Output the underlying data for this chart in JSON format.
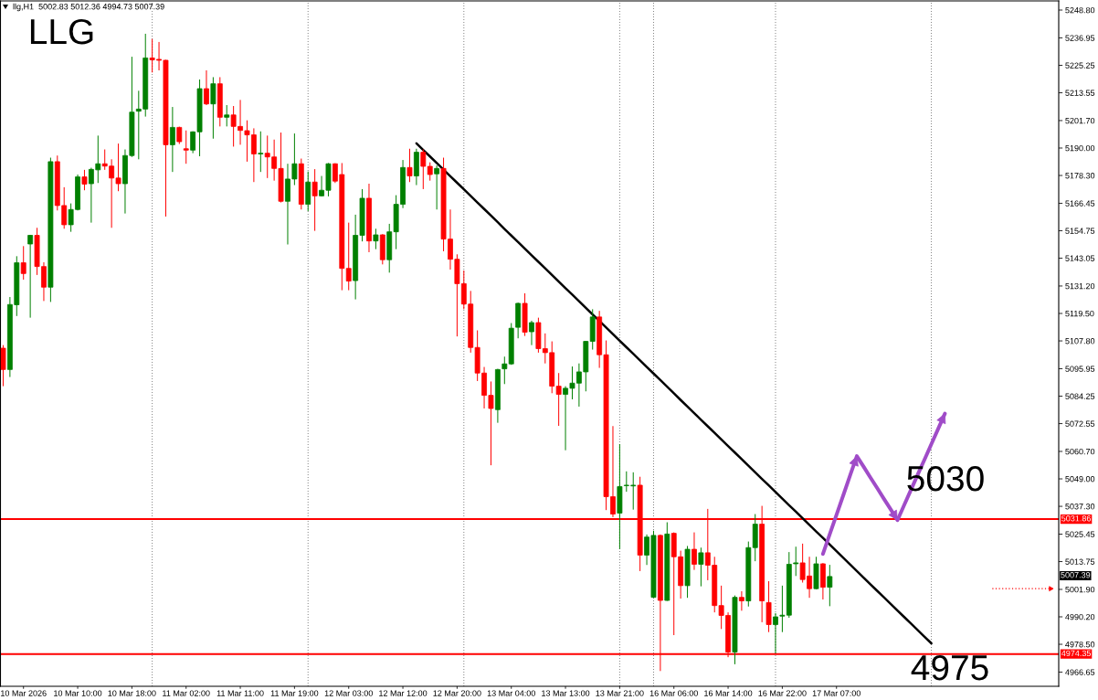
{
  "chart_data": {
    "type": "candlestick",
    "title": "LLG",
    "subtitle": "llg,H1  5002.83 5012.36 4994.73 5007.39",
    "categories": [
      null,
      null,
      null,
      "10 Mar 2026",
      null,
      null,
      null,
      null,
      null,
      null,
      null,
      "10 Mar 10:00",
      null,
      null,
      null,
      null,
      null,
      null,
      null,
      "10 Mar 18:00",
      null,
      null,
      null,
      null,
      null,
      null,
      null,
      "11 Mar 02:00",
      null,
      null,
      null,
      null,
      null,
      null,
      null,
      "11 Mar 11:00",
      null,
      null,
      null,
      null,
      null,
      null,
      null,
      "11 Mar 19:00",
      null,
      null,
      null,
      null,
      null,
      null,
      null,
      "12 Mar 03:00",
      null,
      null,
      null,
      null,
      null,
      null,
      null,
      "12 Mar 12:00",
      null,
      null,
      null,
      null,
      null,
      null,
      null,
      "12 Mar 20:00",
      null,
      null,
      null,
      null,
      null,
      null,
      null,
      "13 Mar 04:00",
      null,
      null,
      null,
      null,
      null,
      null,
      null,
      "13 Mar 13:00",
      null,
      null,
      null,
      null,
      null,
      null,
      null,
      "13 Mar 21:00",
      null,
      null,
      null,
      null,
      null,
      null,
      null,
      "16 Mar 06:00",
      null,
      null,
      null,
      null,
      null,
      null,
      null,
      "16 Mar 14:00",
      null,
      null,
      null,
      null,
      null,
      null,
      null,
      "16 Mar 22:00",
      null,
      null,
      null,
      null,
      null,
      null,
      null,
      "17 Mar 07:00",
      null,
      null,
      null,
      null,
      null,
      null,
      null,
      null,
      null,
      null,
      null,
      null,
      null,
      null,
      null,
      null,
      null,
      null,
      null,
      null,
      null,
      null,
      null,
      null,
      null,
      null,
      null,
      null,
      null,
      null,
      null,
      null
    ],
    "ohlc": [
      [
        5104.7,
        5106.0,
        5088.5,
        5095.6
      ],
      [
        5095.6,
        5126.5,
        5092.4,
        5123.3
      ],
      [
        5123.2,
        5143.9,
        5118.4,
        5141.1
      ],
      [
        5141.1,
        5148.2,
        5133.9,
        5136.5
      ],
      [
        5149.1,
        5153.0,
        5117.7,
        5152.8
      ],
      [
        5152.8,
        5156.0,
        5135.9,
        5139.5
      ],
      [
        5139.5,
        5141.3,
        5124.8,
        5130.7
      ],
      [
        5130.7,
        5185.9,
        5124.4,
        5184.2
      ],
      [
        5184.2,
        5186.8,
        5163.4,
        5165.5
      ],
      [
        5165.5,
        5173.3,
        5155.6,
        5157.3
      ],
      [
        5157.3,
        5166.4,
        5154.3,
        5163.8
      ],
      [
        5163.8,
        5178.7,
        5163.4,
        5177.7
      ],
      [
        5177.7,
        5180.7,
        5172.0,
        5174.6
      ],
      [
        5174.8,
        5181.6,
        5158.2,
        5180.9
      ],
      [
        5180.7,
        5195.3,
        5175.1,
        5183.3
      ],
      [
        5183.3,
        5189.4,
        5180.7,
        5182.3
      ],
      [
        5182.3,
        5185.2,
        5156.0,
        5177.2
      ],
      [
        5177.2,
        5191.9,
        5171.6,
        5174.8
      ],
      [
        5174.8,
        5189.4,
        5162.1,
        5186.8
      ],
      [
        5186.8,
        5228.9,
        5186.2,
        5205.3
      ],
      [
        5205.7,
        5214.4,
        5185.2,
        5206.6
      ],
      [
        5206.6,
        5238.7,
        5203.4,
        5228.4
      ],
      [
        5228.4,
        5236.5,
        5222.2,
        5227.6
      ],
      [
        5227.8,
        5235.2,
        5223.1,
        5227.4
      ],
      [
        5227.4,
        5227.6,
        5160.8,
        5191.4
      ],
      [
        5191.4,
        5207.5,
        5179.8,
        5198.8
      ],
      [
        5198.8,
        5199.1,
        5191.7,
        5192.7
      ],
      [
        5189.7,
        5197.5,
        5183.3,
        5189.1
      ],
      [
        5189.1,
        5197.1,
        5187.8,
        5196.9
      ],
      [
        5196.9,
        5219.2,
        5186.5,
        5215.3
      ],
      [
        5215.3,
        5223.1,
        5208.3,
        5208.8
      ],
      [
        5208.8,
        5220.2,
        5194.0,
        5217.4
      ],
      [
        5217.4,
        5220.2,
        5199.2,
        5203.1
      ],
      [
        5203.1,
        5208.3,
        5199.2,
        5204.1
      ],
      [
        5204.1,
        5207.9,
        5190.6,
        5199.2
      ],
      [
        5199.2,
        5210.5,
        5191.4,
        5197.5
      ],
      [
        5197.4,
        5201.8,
        5184.2,
        5195.6
      ],
      [
        5195.6,
        5198.4,
        5175.5,
        5187.5
      ],
      [
        5187.5,
        5197.1,
        5179.8,
        5187.8
      ],
      [
        5187.8,
        5195.3,
        5177.2,
        5186.2
      ],
      [
        5186.2,
        5193.6,
        5176.1,
        5181.3
      ],
      [
        5181.3,
        5196.6,
        5166.8,
        5167.3
      ],
      [
        5167.3,
        5183.3,
        5148.9,
        5176.8
      ],
      [
        5176.8,
        5196.2,
        5174.2,
        5183.3
      ],
      [
        5183.3,
        5185.5,
        5163.8,
        5166.0
      ],
      [
        5166.0,
        5180.0,
        5163.1,
        5175.5
      ],
      [
        5175.5,
        5181.0,
        5154.7,
        5169.6
      ],
      [
        5169.6,
        5178.1,
        5169.4,
        5172.0
      ],
      [
        5172.0,
        5183.6,
        5169.4,
        5183.3
      ],
      [
        5183.3,
        5183.5,
        5175.1,
        5175.9
      ],
      [
        5178.7,
        5183.6,
        5129.4,
        5138.7
      ],
      [
        5138.7,
        5158.2,
        5129.4,
        5133.3
      ],
      [
        5133.5,
        5161.6,
        5125.5,
        5152.8
      ],
      [
        5152.8,
        5172.5,
        5150.2,
        5168.6
      ],
      [
        5168.6,
        5174.8,
        5145.6,
        5150.4
      ],
      [
        5150.4,
        5155.6,
        5146.9,
        5153.0
      ],
      [
        5153.0,
        5153.3,
        5140.4,
        5142.4
      ],
      [
        5142.4,
        5157.7,
        5136.9,
        5154.3
      ],
      [
        5154.3,
        5169.9,
        5146.9,
        5166.0
      ],
      [
        5166.0,
        5184.9,
        5164.4,
        5181.7
      ],
      [
        5181.7,
        5189.7,
        5175.5,
        5178.1
      ],
      [
        5178.1,
        5189.7,
        5174.2,
        5188.2
      ],
      [
        5188.2,
        5189.4,
        5172.5,
        5182.2
      ],
      [
        5182.2,
        5183.9,
        5176.1,
        5178.7
      ],
      [
        5179.0,
        5182.6,
        5163.8,
        5181.3
      ],
      [
        5181.3,
        5185.9,
        5146.0,
        5151.2
      ],
      [
        5151.2,
        5163.8,
        5138.2,
        5142.6
      ],
      [
        5142.6,
        5144.7,
        5109.7,
        5132.2
      ],
      [
        5132.2,
        5137.8,
        5121.3,
        5123.5
      ],
      [
        5123.5,
        5129.1,
        5102.8,
        5105.0
      ],
      [
        5105.0,
        5112.3,
        5090.7,
        5094.1
      ],
      [
        5094.1,
        5096.7,
        5079.0,
        5084.6
      ],
      [
        5084.6,
        5090.5,
        5054.8,
        5079.0
      ],
      [
        5078.5,
        5095.9,
        5072.9,
        5095.6
      ],
      [
        5095.9,
        5101.1,
        5089.4,
        5098.0
      ],
      [
        5098.0,
        5115.4,
        5097.6,
        5113.2
      ],
      [
        5113.6,
        5124.1,
        5108.9,
        5123.8
      ],
      [
        5123.8,
        5128.1,
        5109.9,
        5111.5
      ],
      [
        5111.7,
        5116.4,
        5106.0,
        5115.6
      ],
      [
        5115.6,
        5117.7,
        5102.8,
        5104.5
      ],
      [
        5104.5,
        5111.0,
        5098.2,
        5102.8
      ],
      [
        5102.8,
        5107.6,
        5085.5,
        5088.5
      ],
      [
        5088.5,
        5094.1,
        5071.6,
        5085.0
      ],
      [
        5085.0,
        5088.5,
        5061.2,
        5087.6
      ],
      [
        5087.6,
        5096.9,
        5082.9,
        5089.8
      ],
      [
        5089.8,
        5098.2,
        5079.8,
        5094.6
      ],
      [
        5094.6,
        5107.8,
        5086.3,
        5107.6
      ],
      [
        5107.6,
        5121.3,
        5104.1,
        5118.0
      ],
      [
        5118.0,
        5120.6,
        5096.3,
        5101.9
      ],
      [
        5101.9,
        5108.0,
        5035.7,
        5041.4
      ],
      [
        5041.4,
        5071.5,
        5032.7,
        5034.0
      ],
      [
        5034.4,
        5063.8,
        5019.1,
        5045.7
      ],
      [
        5046.1,
        5052.2,
        5043.5,
        5046.3
      ],
      [
        5046.0,
        5051.8,
        5035.9,
        5046.3
      ],
      [
        5046.3,
        5049.9,
        5009.7,
        5016.5
      ],
      [
        5016.5,
        5025.3,
        5012.3,
        5024.2
      ],
      [
        4998.5,
        5026.9,
        4998.3,
        5024.9
      ],
      [
        5024.9,
        5025.3,
        4967.1,
        4997.2
      ],
      [
        4997.2,
        5030.5,
        4997.0,
        5025.5
      ],
      [
        5025.8,
        5026.2,
        4982.4,
        5015.8
      ],
      [
        5015.8,
        5018.4,
        4998.0,
        5003.5
      ],
      [
        5003.5,
        5020.4,
        4998.3,
        5019.0
      ],
      [
        5019.0,
        5026.2,
        5010.2,
        5012.6
      ],
      [
        5012.6,
        5019.7,
        5003.2,
        5017.5
      ],
      [
        5017.5,
        5036.2,
        5005.8,
        5012.2
      ],
      [
        5012.2,
        5015.8,
        4992.1,
        4995.0
      ],
      [
        4995.0,
        5003.5,
        4985.0,
        4990.8
      ],
      [
        4990.8,
        4992.1,
        4973.0,
        4975.2
      ],
      [
        4975.2,
        4999.3,
        4970.0,
        4998.5
      ],
      [
        4998.5,
        5001.1,
        4992.8,
        4997.0
      ],
      [
        4997.0,
        5022.3,
        4994.6,
        5019.7
      ],
      [
        5019.7,
        5034.0,
        5013.9,
        5029.7
      ],
      [
        5029.7,
        5037.5,
        4987.9,
        4997.0
      ],
      [
        4996.3,
        5005.4,
        4983.7,
        4986.9
      ],
      [
        4986.9,
        4991.8,
        4974.7,
        4990.2
      ],
      [
        4990.5,
        5003.5,
        4983.7,
        4990.9
      ],
      [
        4990.9,
        5017.8,
        4989.8,
        5012.6
      ],
      [
        5012.8,
        5020.1,
        5007.6,
        5013.2
      ],
      [
        5013.2,
        5021.4,
        5004.8,
        5006.1
      ],
      [
        5007.6,
        5015.8,
        4998.3,
        5002.2
      ],
      [
        5002.2,
        5015.8,
        5001.9,
        5012.8
      ],
      [
        5012.8,
        5013.1,
        4997.6,
        5002.8
      ],
      [
        5002.83,
        5012.36,
        4994.73,
        5007.39
      ],
      null,
      null,
      null,
      null,
      null,
      null,
      null,
      null,
      null,
      null,
      null,
      null,
      null,
      null,
      null,
      null,
      null,
      null,
      null,
      null,
      null,
      null,
      null,
      null,
      null,
      null,
      null,
      null,
      null,
      null,
      null,
      null,
      null
    ],
    "colors": [
      "#ff0000",
      "#008000",
      "#008000",
      "#ff0000",
      "#008000",
      "#ff0000",
      "#ff0000",
      "#008000",
      "#ff0000",
      "#ff0000",
      "#008000",
      "#008000",
      "#ff0000",
      "#008000",
      "#008000",
      "#ff0000",
      "#ff0000",
      "#ff0000",
      "#008000",
      "#008000",
      "#008000",
      "#008000",
      "#ff0000",
      "#ff0000",
      "#ff0000",
      "#008000",
      "#ff0000",
      "#ff0000",
      "#008000",
      "#008000",
      "#ff0000",
      "#008000",
      "#ff0000",
      "#008000",
      "#ff0000",
      "#ff0000",
      "#ff0000",
      "#ff0000",
      "#008000",
      "#ff0000",
      "#ff0000",
      "#ff0000",
      "#008000",
      "#008000",
      "#ff0000",
      "#008000",
      "#ff0000",
      "#008000",
      "#008000",
      "#ff0000",
      "#ff0000",
      "#ff0000",
      "#008000",
      "#008000",
      "#ff0000",
      "#008000",
      "#ff0000",
      "#008000",
      "#008000",
      "#008000",
      "#ff0000",
      "#008000",
      "#ff0000",
      "#ff0000",
      "#008000",
      "#ff0000",
      "#ff0000",
      "#ff0000",
      "#ff0000",
      "#ff0000",
      "#ff0000",
      "#ff0000",
      "#ff0000",
      "#008000",
      "#008000",
      "#008000",
      "#008000",
      "#ff0000",
      "#008000",
      "#ff0000",
      "#ff0000",
      "#ff0000",
      "#ff0000",
      "#008000",
      "#008000",
      "#008000",
      "#008000",
      "#008000",
      "#ff0000",
      "#ff0000",
      "#ff0000",
      "#008000",
      "#008000",
      "#008000",
      "#ff0000",
      "#008000",
      "#008000",
      "#ff0000",
      "#008000",
      "#ff0000",
      "#ff0000",
      "#008000",
      "#ff0000",
      "#008000",
      "#ff0000",
      "#ff0000",
      "#ff0000",
      "#ff0000",
      "#008000",
      "#ff0000",
      "#008000",
      "#008000",
      "#ff0000",
      "#ff0000",
      "#008000",
      "#008000",
      "#008000",
      "#008000",
      "#ff0000",
      "#ff0000",
      "#008000",
      "#ff0000",
      "#008000",
      null,
      null,
      null,
      null,
      null,
      null,
      null,
      null,
      null,
      null,
      null,
      null,
      null,
      null,
      null,
      null,
      null,
      null,
      null,
      null,
      null,
      null,
      null,
      null,
      null,
      null,
      null,
      null,
      null,
      null,
      null,
      null,
      null
    ],
    "ylim": [
      4960.6,
      5252.7
    ],
    "yticks": [
      {
        "value": 5248.8,
        "label": "5248.80"
      },
      5236.95,
      5225.25,
      5213.55,
      {
        "value": 5201.7,
        "label": "5201.70"
      },
      {
        "value": 5190,
        "label": "5190.00"
      },
      {
        "value": 5178.3,
        "label": "5178.30"
      },
      5166.45,
      5154.75,
      5143.05,
      {
        "value": 5131.2,
        "label": "5131.20"
      },
      {
        "value": 5119.5,
        "label": "5119.50"
      },
      {
        "value": 5107.8,
        "label": "5107.80"
      },
      5095.95,
      5084.25,
      5072.55,
      {
        "value": 5060.7,
        "label": "5060.70"
      },
      {
        "value": 5049,
        "label": "5049.00"
      },
      {
        "value": 5037.3,
        "label": "5037.30"
      },
      5025.45,
      5013.75,
      {
        "value": 5001.9,
        "label": "5001.90"
      },
      {
        "value": 4990.2,
        "label": "4990.20"
      },
      {
        "value": 4978.5,
        "label": "4978.50"
      },
      4966.65
    ],
    "series": [
      {
        "type": "line",
        "color": "#000000",
        "values": [
          null,
          null,
          null,
          null,
          null,
          null,
          null,
          null,
          null,
          null,
          null,
          null,
          null,
          null,
          null,
          null,
          null,
          null,
          null,
          null,
          null,
          null,
          null,
          null,
          null,
          null,
          null,
          null,
          null,
          null,
          null,
          null,
          null,
          null,
          null,
          null,
          null,
          null,
          null,
          null,
          null,
          null,
          null,
          null,
          null,
          null,
          null,
          null,
          null,
          null,
          null,
          null,
          null,
          null,
          null,
          null,
          null,
          null,
          null,
          null,
          null,
          5192.0,
          5189.2,
          5186.4,
          5183.6,
          5180.8,
          5178.0,
          5175.2,
          5172.4,
          5169.6,
          5166.8,
          5164.0,
          5161.2,
          5158.4,
          5155.5,
          5152.7,
          5149.9,
          5147.1,
          5144.3,
          5141.5,
          5138.7,
          5135.9,
          5133.1,
          5130.3,
          5127.5,
          5124.7,
          5121.9,
          5119.1,
          5116.3,
          5113.5,
          5110.7,
          5107.9,
          5105.1,
          5102.3,
          5099.5,
          5096.7,
          5093.9,
          5091.1,
          5088.3,
          5085.5,
          5082.6,
          5079.8,
          5077.0,
          5074.2,
          5071.4,
          5068.6,
          5065.8,
          5063.0,
          5060.2,
          5057.4,
          5054.6,
          5051.8,
          5049.0,
          5046.2,
          5043.4,
          5040.6,
          5037.8,
          5035.0,
          5032.2,
          5029.4,
          5026.6,
          5023.8,
          5021.0,
          5018.2,
          5015.4,
          5012.5,
          5009.7,
          5006.9,
          5004.1,
          5001.3,
          4998.5,
          4995.7,
          4992.9,
          4990.1,
          4987.3,
          4984.5,
          4981.7,
          4978.9,
          null,
          null,
          null,
          null,
          null,
          null,
          null,
          null,
          null,
          null,
          null,
          null,
          null,
          null,
          null,
          null,
          null,
          null
        ]
      },
      {
        "type": "line",
        "color": "#a04cc8",
        "values": [
          null,
          null,
          null,
          null,
          null,
          null,
          null,
          null,
          null,
          null,
          null,
          null,
          null,
          null,
          null,
          null,
          null,
          null,
          null,
          null,
          null,
          null,
          null,
          null,
          null,
          null,
          null,
          null,
          null,
          null,
          null,
          null,
          null,
          null,
          null,
          null,
          null,
          null,
          null,
          null,
          null,
          null,
          null,
          null,
          null,
          null,
          null,
          null,
          null,
          null,
          null,
          null,
          null,
          null,
          null,
          null,
          null,
          null,
          null,
          null,
          null,
          null,
          null,
          null,
          null,
          null,
          null,
          null,
          null,
          null,
          null,
          null,
          null,
          null,
          null,
          null,
          null,
          null,
          null,
          null,
          null,
          null,
          null,
          null,
          null,
          null,
          null,
          null,
          null,
          null,
          null,
          null,
          null,
          null,
          null,
          null,
          null,
          null,
          null,
          null,
          null,
          null,
          null,
          null,
          null,
          null,
          null,
          null,
          null,
          null,
          null,
          null,
          null,
          null,
          null,
          null,
          null,
          null,
          null,
          null,
          null,
          5017.0,
          5025.4,
          5033.7,
          5042.0,
          5050.4,
          5058.7,
          5054.2,
          5049.6,
          5045.1,
          5040.5,
          5036.0,
          5031.4,
          5037.9,
          5044.4,
          5050.9,
          5057.3,
          5063.8,
          5070.3,
          5076.8,
          null,
          null,
          null,
          null,
          null,
          null,
          null,
          null,
          null,
          null,
          null,
          null,
          null,
          null,
          null,
          null
        ]
      },
      {
        "type": "line",
        "color": "#ff0000",
        "line_style": "dotted",
        "values": [
          null,
          null,
          null,
          null,
          null,
          null,
          null,
          null,
          null,
          null,
          null,
          null,
          null,
          null,
          null,
          null,
          null,
          null,
          null,
          null,
          null,
          null,
          null,
          null,
          null,
          null,
          null,
          null,
          null,
          null,
          null,
          null,
          null,
          null,
          null,
          null,
          null,
          null,
          null,
          null,
          null,
          null,
          null,
          null,
          null,
          null,
          null,
          null,
          null,
          null,
          null,
          null,
          null,
          null,
          null,
          null,
          null,
          null,
          null,
          null,
          null,
          null,
          null,
          null,
          null,
          null,
          null,
          null,
          null,
          null,
          null,
          null,
          null,
          null,
          null,
          null,
          null,
          null,
          null,
          null,
          null,
          null,
          null,
          null,
          null,
          null,
          null,
          null,
          null,
          null,
          null,
          null,
          null,
          null,
          null,
          null,
          null,
          null,
          null,
          null,
          null,
          null,
          null,
          null,
          null,
          null,
          null,
          null,
          null,
          null,
          null,
          null,
          null,
          null,
          null,
          null,
          null,
          null,
          null,
          null,
          null,
          null,
          null,
          null,
          null,
          null,
          null,
          null,
          null,
          null,
          null,
          null,
          null,
          null,
          null,
          null,
          null,
          null,
          null,
          null,
          null,
          null,
          null,
          null,
          null,
          null,
          5002.2,
          5002.2,
          5002.2,
          5002.2,
          5002.2,
          5002.2,
          5002.2,
          5002.2,
          5002.2,
          5002.2
        ]
      }
    ],
    "ref_lines": [
      {
        "axis": "y",
        "value": 5031.86,
        "label": "5031.86",
        "color": "#ff0000"
      },
      {
        "axis": "y",
        "value": 4974.35,
        "label": "4974.35",
        "color": "#ff0000"
      }
    ],
    "annotations": [
      "5030",
      "4975",
      "5007.39"
    ]
  }
}
